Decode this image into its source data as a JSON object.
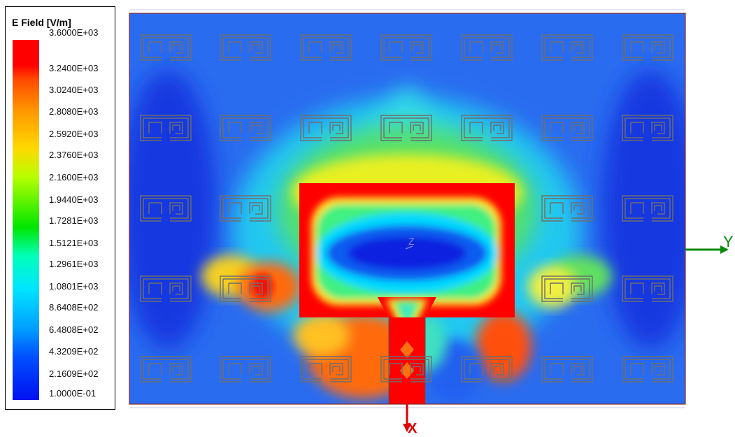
{
  "legend": {
    "title": "E Field [V/m]",
    "ticks": [
      "3.6000E+03",
      "3.2400E+03",
      "3.0240E+03",
      "2.8080E+03",
      "2.5920E+03",
      "2.3760E+03",
      "2.1600E+03",
      "1.9440E+03",
      "1.7281E+03",
      "1.5121E+03",
      "1.2961E+03",
      "1.0801E+03",
      "8.6408E+02",
      "6.4808E+02",
      "4.3209E+02",
      "2.1609E+02",
      "1.0000E-01"
    ]
  },
  "axes": {
    "x_label": "X",
    "y_label": "Y",
    "z_label": "Z"
  },
  "colors": {
    "low": "#0010f0",
    "mid": "#00e600",
    "high": "#ff0000",
    "background_field": "#2a6cf0",
    "y_axis": "#0a8a0a",
    "x_axis": "#e00000"
  }
}
